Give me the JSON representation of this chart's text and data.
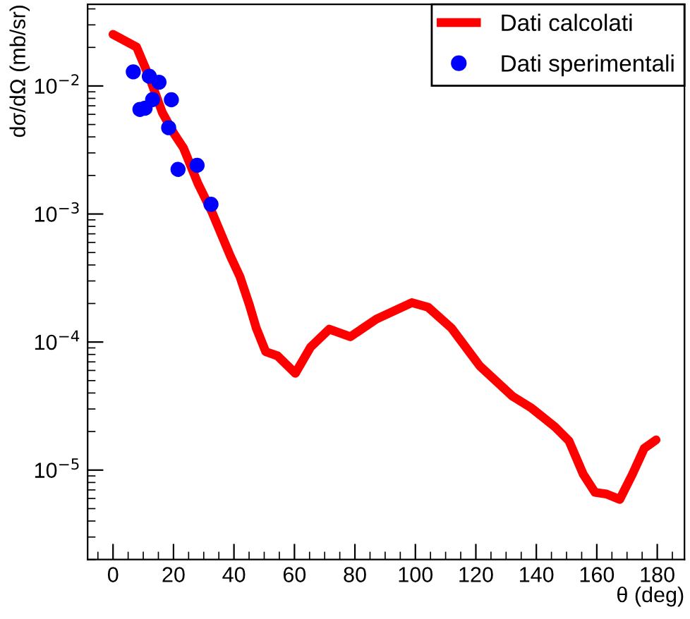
{
  "chart_data": {
    "type": "line",
    "xlabel": "θ (deg)",
    "ylabel": "dσ/dΩ (mb/sr)",
    "log": "y",
    "legend": "top right",
    "grid": false,
    "xlim": [
      -8.4,
      189
    ],
    "xticks": [
      0,
      20,
      40,
      60,
      80,
      100,
      120,
      140,
      160,
      180
    ],
    "ylim": [
      2e-06,
      0.0434
    ],
    "yticks": [
      {
        "value": 1e-05,
        "label": "10$^{−5}$"
      },
      {
        "value": 0.0001,
        "label": "10$^{−4}$"
      },
      {
        "value": 0.001,
        "label": "10$^{−3}$"
      },
      {
        "value": 0.01,
        "label": "10$^{−2}$"
      }
    ],
    "series": [
      {
        "name": "Dati calcolati",
        "color": "#ff0000",
        "x": [
          0,
          7.8,
          12.4,
          16.3,
          20.2,
          23.3,
          28,
          32.6,
          38.8,
          42,
          45.1,
          47.4,
          50.5,
          54.4,
          60.3,
          65.3,
          71.5,
          78.5,
          87.1,
          98.8,
          104.2,
          112,
          121.3,
          132.2,
          138.4,
          146.2,
          150.8,
          155.5,
          159.4,
          163.2,
          167.6,
          171.8,
          175.7,
          179.6
        ],
        "values": [
          0.0253,
          0.0201,
          0.0111,
          0.0062,
          0.00423,
          0.00328,
          0.00175,
          0.00105,
          0.00047,
          0.000323,
          0.000195,
          0.000128,
          8.4e-05,
          7.8e-05,
          5.7e-05,
          9.1e-05,
          0.000126,
          0.00011,
          0.000151,
          0.000203,
          0.000187,
          0.000128,
          6.5e-05,
          3.76e-05,
          3.05e-05,
          2.17e-05,
          1.69e-05,
          9.3e-06,
          6.7e-06,
          6.5e-06,
          5.9e-06,
          9.3e-06,
          1.48e-05,
          1.72e-05
        ]
      },
      {
        "name": "Dati sperimentali",
        "type": "scatter",
        "marker": "circle",
        "color": "#0000ff",
        "x": [
          6.7,
          8.9,
          10.6,
          12.0,
          13.1,
          15.2,
          18.4,
          19.3,
          21.5,
          27.8,
          32.4
        ],
        "values": [
          0.0129,
          0.00656,
          0.0067,
          0.0119,
          0.00783,
          0.0107,
          0.00472,
          0.0078,
          0.00223,
          0.0024,
          0.00119
        ]
      }
    ]
  }
}
